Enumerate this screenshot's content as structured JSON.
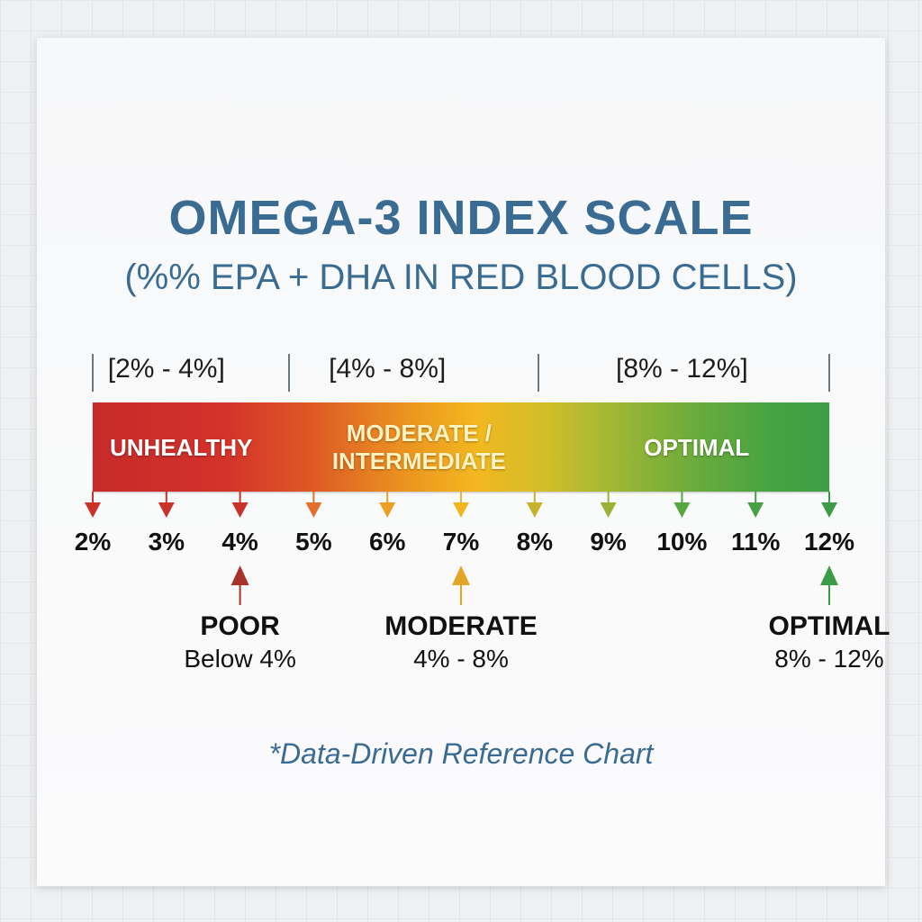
{
  "chart_data": {
    "type": "bar",
    "title": "OMEGA-3 INDEX SCALE",
    "subtitle": "(%% EPA + DHA IN RED BLOOD CELLS)",
    "footnote": "*Data-Driven Reference Chart",
    "scale": {
      "min": 2,
      "max": 12,
      "unit": "%"
    },
    "ticks": [
      {
        "value": 2,
        "label": "2%",
        "color": "#c83228"
      },
      {
        "value": 3,
        "label": "3%",
        "color": "#c83228"
      },
      {
        "value": 4,
        "label": "4%",
        "color": "#c83228"
      },
      {
        "value": 5,
        "label": "5%",
        "color": "#e2702a"
      },
      {
        "value": 6,
        "label": "6%",
        "color": "#eba024"
      },
      {
        "value": 7,
        "label": "7%",
        "color": "#efb621"
      },
      {
        "value": 8,
        "label": "8%",
        "color": "#c7b22e"
      },
      {
        "value": 9,
        "label": "9%",
        "color": "#98b236"
      },
      {
        "value": 10,
        "label": "10%",
        "color": "#55a63e"
      },
      {
        "value": 11,
        "label": "11%",
        "color": "#45a142"
      },
      {
        "value": 12,
        "label": "12%",
        "color": "#3c9c45"
      }
    ],
    "ranges": [
      {
        "label": "[2% - 4%]",
        "from": 2,
        "to": 4
      },
      {
        "label": "[4% - 8%]",
        "from": 4,
        "to": 8
      },
      {
        "label": "[8% - 12%]",
        "from": 8,
        "to": 12
      }
    ],
    "separators": [
      2,
      4.66,
      8.05,
      12
    ],
    "zones": [
      {
        "lines": [
          "UNHEALTHY"
        ],
        "center": 3.2,
        "style": "white"
      },
      {
        "lines": [
          "MODERATE /",
          "INTERMEDIATE"
        ],
        "center": 6.43,
        "style": "yellow"
      },
      {
        "lines": [
          "OPTIMAL"
        ],
        "center": 10.2,
        "style": "white"
      }
    ],
    "markers": [
      {
        "title": "POOR",
        "value_label": "Below 4%",
        "at": 4,
        "color": "#a8322a"
      },
      {
        "title": "MODERATE",
        "value_label": "4% - 8%",
        "at": 7,
        "color": "#e2a526"
      },
      {
        "title": "OPTIMAL",
        "value_label": "8% - 12%",
        "at": 12,
        "color": "#3c9c45"
      }
    ]
  }
}
